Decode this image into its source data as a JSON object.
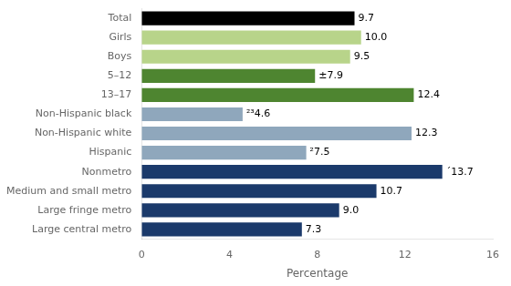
{
  "chart_data": {
    "type": "bar",
    "orientation": "horizontal",
    "categories": [
      "Large central metro",
      "Large fringe metro",
      "Medium and small metro",
      "Nonmetro",
      "Hispanic",
      "Non-Hispanic white",
      "Non-Hispanic black",
      "13–17",
      "5–12",
      "Boys",
      "Girls",
      "Total"
    ],
    "values": [
      7.3,
      9.0,
      10.7,
      13.7,
      7.5,
      12.3,
      4.6,
      12.4,
      7.9,
      9.5,
      10.0,
      9.7
    ],
    "value_labels": [
      "7.3",
      "9.0",
      "10.7",
      "´13.7",
      "²7.5",
      "12.3",
      "²³4.6",
      "12.4",
      "±7.9",
      "9.5",
      "10.0",
      "9.7"
    ],
    "colors": [
      "#1b3a6b",
      "#1b3a6b",
      "#1b3a6b",
      "#1b3a6b",
      "#8fa7bc",
      "#8fa7bc",
      "#8fa7bc",
      "#4e8530",
      "#4e8530",
      "#b8d48a",
      "#b8d48a",
      "#000000"
    ],
    "data_labels": true,
    "xlabel": "Percentage",
    "xlim": [
      0,
      16
    ],
    "xticks": [
      0,
      4,
      8,
      12,
      16
    ],
    "grid": false
  }
}
